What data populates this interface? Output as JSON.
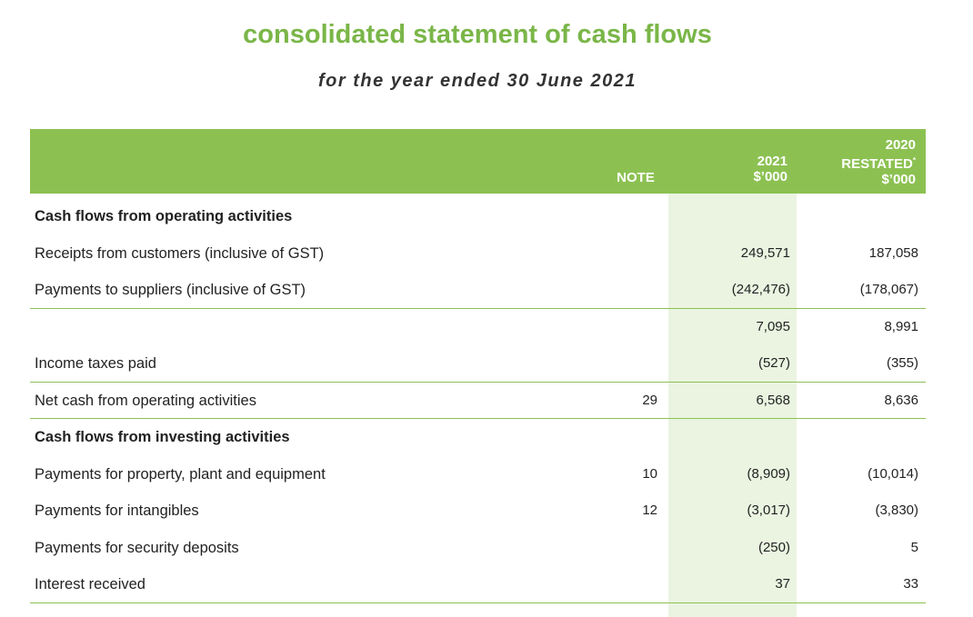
{
  "header": {
    "title": "consolidated statement of cash flows",
    "subtitle": "for the year ended 30 June 2021"
  },
  "table": {
    "columns": {
      "note": "NOTE",
      "current": [
        "2021",
        "$’000"
      ],
      "prior": [
        "2020",
        "RESTATED",
        "*",
        "$’000"
      ]
    },
    "rows": [
      {
        "label": "Cash flows from operating activities",
        "section": true
      },
      {
        "label": "Receipts from customers (inclusive of GST)",
        "current": "249,571",
        "prior": "187,058"
      },
      {
        "label": "Payments to suppliers (inclusive of GST)",
        "current": "(242,476)",
        "prior": "(178,067)",
        "rule": true
      },
      {
        "current": "7,095",
        "prior": "8,991"
      },
      {
        "label": "Income taxes paid",
        "current": "(527)",
        "prior": "(355)",
        "rule": true
      },
      {
        "label": "Net cash from operating activities",
        "note": "29",
        "current": "6,568",
        "prior": "8,636",
        "rule": true
      },
      {
        "label": "Cash flows from investing activities",
        "section": true
      },
      {
        "label": "Payments for property, plant and equipment",
        "note": "10",
        "current": "(8,909)",
        "prior": "(10,014)"
      },
      {
        "label": "Payments for intangibles",
        "note": "12",
        "current": "(3,017)",
        "prior": "(3,830)"
      },
      {
        "label": "Payments for security deposits",
        "current": "(250)",
        "prior": "5"
      },
      {
        "label": "Interest received",
        "current": "37",
        "prior": "33",
        "rule": true
      }
    ]
  }
}
